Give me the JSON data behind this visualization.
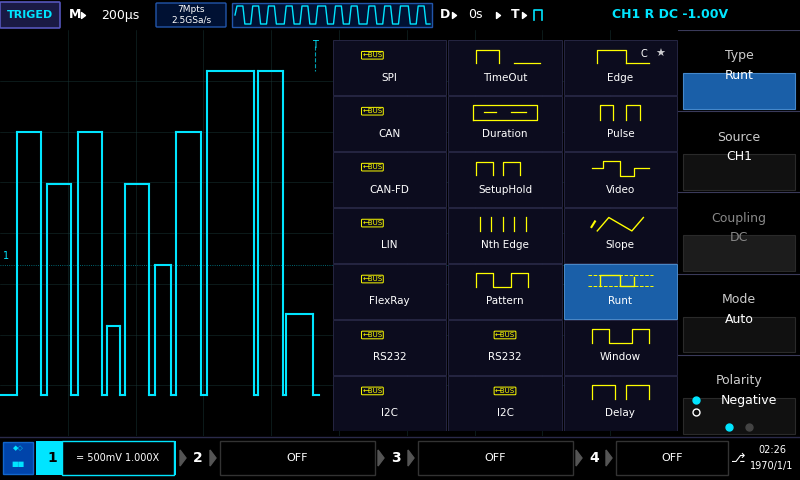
{
  "bg_color": "#000000",
  "header_bg": "#111122",
  "cyan_color": "#00e5ff",
  "yellow_color": "#ffff00",
  "blue_highlight": "#1a5fa8",
  "light_gray": "#888888",
  "grid_color": "#1a3a3a",
  "title_bar": {
    "triged": "TRIGED",
    "m_label": "M",
    "time_div": "200μs",
    "mpts": "7Mpts",
    "gsas": "2.5GSa/s",
    "d_label": "D",
    "d_value": "0s",
    "t_label": "T",
    "trigger_info": "CH1 R DC -1.00V"
  },
  "menu_items": [
    {
      "label": "Type",
      "value": "Runt",
      "highlighted": true,
      "dimmed": false,
      "arrow_right": true,
      "arrow_left": false
    },
    {
      "label": "Source",
      "value": "CH1",
      "highlighted": false,
      "dimmed": false,
      "arrow_right": false,
      "arrow_left": false
    },
    {
      "label": "Coupling",
      "value": "DC",
      "highlighted": false,
      "dimmed": true,
      "arrow_right": false,
      "arrow_left": false
    },
    {
      "label": "Mode",
      "value": "Auto",
      "highlighted": false,
      "dimmed": false,
      "arrow_right": false,
      "arrow_left": true
    },
    {
      "label": "Polarity",
      "value": "Negative",
      "highlighted": false,
      "dimmed": false,
      "arrow_right": false,
      "arrow_left": false,
      "radio": true
    }
  ],
  "trigger_table": {
    "col1": [
      "SPI",
      "CAN",
      "CAN-FD",
      "LIN",
      "FlexRay",
      "RS232",
      "I2C"
    ],
    "col2": [
      "TimeOut",
      "Duration",
      "SetupHold",
      "Nth Edge",
      "Pattern",
      "",
      ""
    ],
    "col3": [
      "Edge",
      "Pulse",
      "Video",
      "Slope",
      "Runt",
      "Window",
      "Delay"
    ],
    "highlighted_row": 4,
    "highlighted_col": 2
  },
  "bottom_bar": {
    "ch1_val": "= 500mV 1.000X",
    "ch2_val": "OFF",
    "ch3_val": "OFF",
    "ch4_val": "OFF",
    "time_line1": "02:26",
    "time_line2": "1970/1/1"
  }
}
